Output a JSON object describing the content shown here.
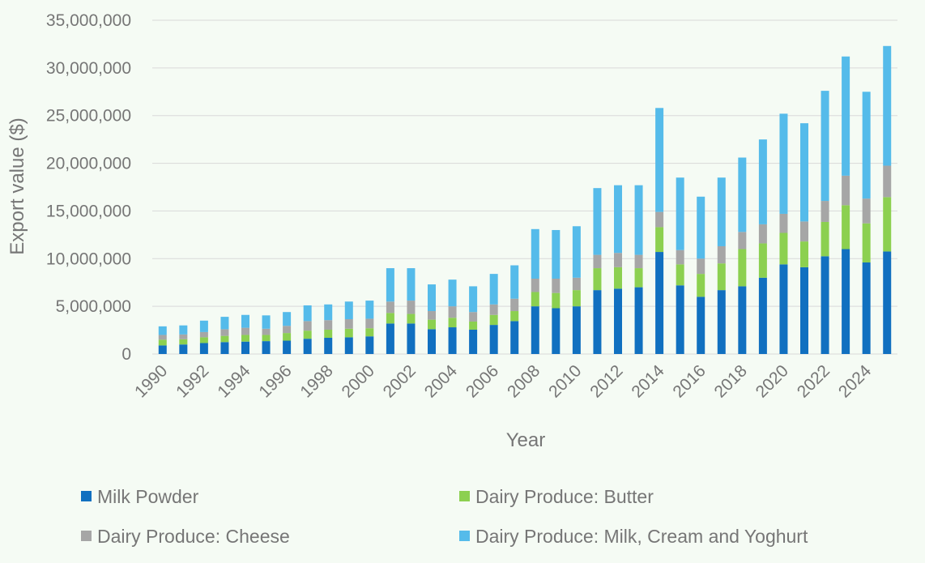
{
  "chart_data": {
    "type": "bar",
    "stacked": true,
    "title": "",
    "xlabel": "Year",
    "ylabel": "Export value ($)",
    "ylim": [
      0,
      35000000
    ],
    "yticks": [
      0,
      5000000,
      10000000,
      15000000,
      20000000,
      25000000,
      30000000,
      35000000
    ],
    "ytick_labels": [
      "0",
      "5,000,000",
      "10,000,000",
      "15,000,000",
      "20,000,000",
      "25,000,000",
      "30,000,000",
      "35,000,000"
    ],
    "grid": true,
    "legend_position": "bottom",
    "categories": [
      "1990",
      "1991",
      "1992",
      "1993",
      "1994",
      "1995",
      "1996",
      "1997",
      "1998",
      "1999",
      "2000",
      "2001",
      "2002",
      "2003",
      "2004",
      "2005",
      "2006",
      "2007",
      "2008",
      "2009",
      "2010",
      "2011",
      "2012",
      "2013",
      "2014",
      "2015",
      "2016",
      "2017",
      "2018",
      "2019",
      "2020",
      "2021",
      "2022",
      "2023",
      "2024",
      "2025"
    ],
    "xtick_labels": [
      "1990",
      "1992",
      "1994",
      "1996",
      "1998",
      "2000",
      "2002",
      "2004",
      "2006",
      "2008",
      "2010",
      "2012",
      "2014",
      "2016",
      "2018",
      "2020",
      "2022",
      "2024"
    ],
    "series": [
      {
        "name": "Milk Powder",
        "color": "#1170c0",
        "values": [
          900000,
          1000000,
          1150000,
          1250000,
          1300000,
          1350000,
          1400000,
          1600000,
          1700000,
          1750000,
          1850000,
          3200000,
          3200000,
          2600000,
          2800000,
          2550000,
          3050000,
          3450000,
          5000000,
          4800000,
          5000000,
          6700000,
          6850000,
          7000000,
          10700000,
          7200000,
          6000000,
          6700000,
          7100000,
          8000000,
          9400000,
          9100000,
          10250000,
          11000000,
          9600000,
          10750000
        ]
      },
      {
        "name": "Dairy Produce: Butter",
        "color": "#8cd050",
        "values": [
          600000,
          550000,
          600000,
          650000,
          700000,
          650000,
          800000,
          850000,
          850000,
          900000,
          850000,
          1100000,
          1000000,
          1000000,
          1000000,
          850000,
          1050000,
          1050000,
          1500000,
          1600000,
          1700000,
          2300000,
          2250000,
          2000000,
          2600000,
          2200000,
          2400000,
          2800000,
          3900000,
          3600000,
          3300000,
          2700000,
          3600000,
          4600000,
          4100000,
          5700000
        ]
      },
      {
        "name": "Dairy Produce: Cheese",
        "color": "#a6a6a6",
        "values": [
          500000,
          500000,
          550000,
          700000,
          750000,
          650000,
          750000,
          1000000,
          1000000,
          1000000,
          1000000,
          1200000,
          1400000,
          900000,
          1200000,
          1000000,
          1100000,
          1300000,
          1400000,
          1500000,
          1300000,
          1400000,
          1500000,
          1400000,
          1600000,
          1500000,
          1600000,
          1800000,
          1800000,
          2000000,
          2000000,
          2100000,
          2200000,
          3100000,
          2600000,
          3300000
        ]
      },
      {
        "name": "Dairy Produce: Milk, Cream and Yoghurt",
        "color": "#55bbea",
        "values": [
          900000,
          950000,
          1200000,
          1300000,
          1350000,
          1400000,
          1450000,
          1650000,
          1650000,
          1850000,
          1900000,
          3500000,
          3400000,
          2800000,
          2800000,
          2700000,
          3200000,
          3500000,
          5200000,
          5100000,
          5400000,
          7000000,
          7100000,
          7300000,
          10900000,
          7600000,
          6500000,
          7200000,
          7800000,
          8900000,
          10500000,
          10300000,
          11550000,
          12500000,
          11200000,
          12550000
        ]
      }
    ]
  }
}
